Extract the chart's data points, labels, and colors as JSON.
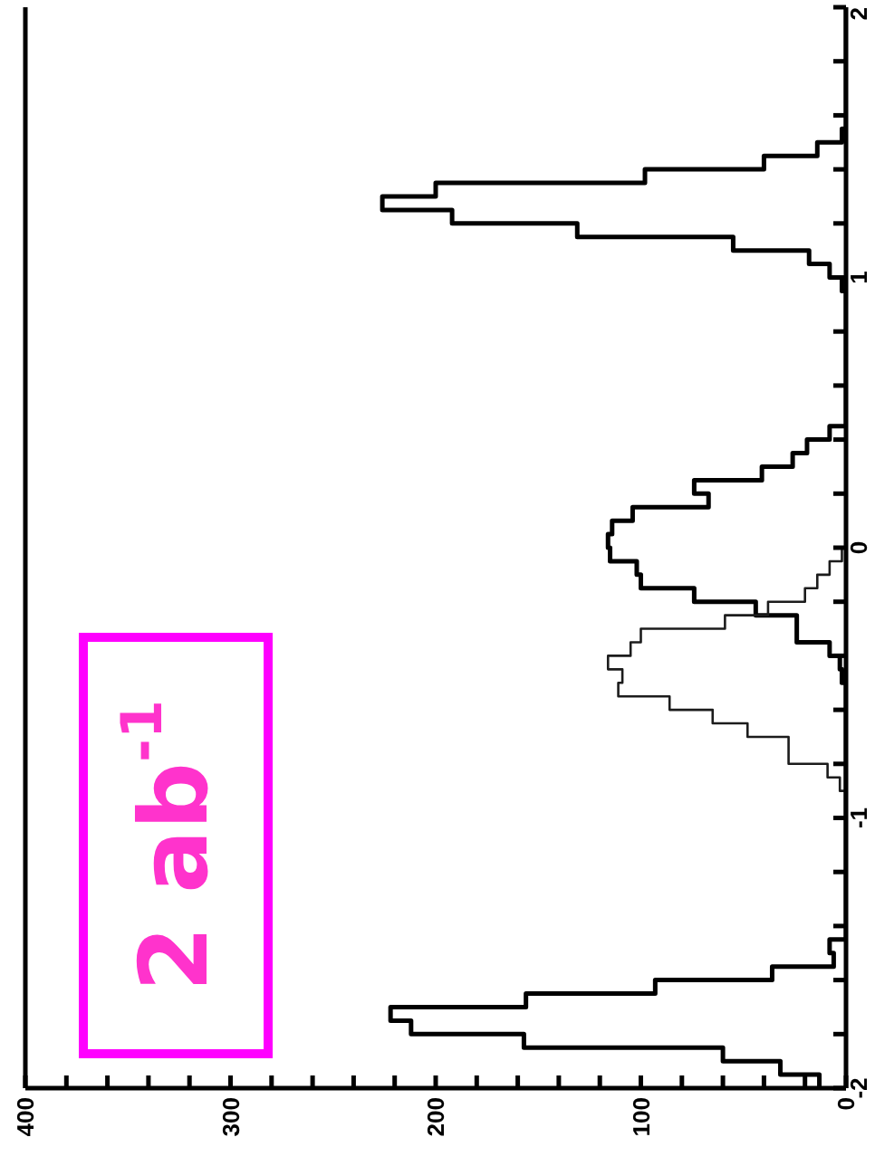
{
  "chart_data": {
    "type": "histogram",
    "orientation": "horizontal",
    "bins": [
      -2,
      -1.95,
      -1.9,
      -1.85,
      -1.8,
      -1.75,
      -1.7,
      -1.65,
      -1.6,
      -1.55,
      -1.5,
      -1.45,
      -1.4,
      -1.35,
      -1.3,
      -1.25,
      -1.2,
      -1.15,
      -1.1,
      -1.05,
      -1,
      -0.95,
      -0.9,
      -0.85,
      -0.8,
      -0.75,
      -0.7,
      -0.65,
      -0.6,
      -0.55,
      -0.5,
      -0.45,
      -0.4,
      -0.35,
      -0.3,
      -0.25,
      -0.2,
      -0.15,
      -0.1,
      -0.05,
      0,
      0.05,
      0.1,
      0.15,
      0.2,
      0.25,
      0.3,
      0.35,
      0.4,
      0.45,
      0.5,
      0.55,
      0.6,
      0.65,
      0.7,
      0.75,
      0.8,
      0.85,
      0.9,
      0.95,
      1,
      1.05,
      1.1,
      1.15,
      1.2,
      1.25,
      1.3,
      1.35,
      1.4,
      1.45,
      1.5,
      1.55,
      1.6,
      1.65,
      1.7,
      1.75,
      1.8,
      1.85,
      1.9,
      1.95,
      2
    ],
    "series": [
      {
        "color": "#000000",
        "values": [
          13,
          32,
          60,
          157,
          212,
          222,
          156,
          93,
          36,
          6,
          8,
          0,
          0,
          0,
          0,
          0,
          0,
          0,
          0,
          0,
          0,
          0,
          0,
          0,
          0,
          0,
          0,
          0,
          0,
          0,
          2,
          3,
          8,
          24,
          24,
          44,
          74,
          100,
          102,
          115,
          116,
          114,
          104,
          67,
          74,
          41,
          26,
          19,
          8,
          0,
          0,
          0,
          0,
          0,
          0,
          0,
          0,
          0,
          0,
          2,
          8,
          18,
          55,
          131,
          192,
          226,
          200,
          98,
          40,
          14,
          2,
          0,
          0,
          0,
          0,
          0,
          0,
          0,
          0,
          0
        ]
      },
      {
        "color": "#1c1c1c",
        "values": [
          0,
          0,
          0,
          0,
          0,
          0,
          0,
          0,
          0,
          0,
          0,
          0,
          0,
          0,
          0,
          0,
          0,
          0,
          0,
          0,
          0,
          0,
          3,
          9,
          28,
          28,
          48,
          65,
          86,
          111,
          109,
          116,
          105,
          100,
          59,
          38,
          20,
          14,
          8,
          2,
          0,
          0,
          0,
          0,
          0,
          0,
          0,
          0,
          0,
          0,
          0,
          0,
          0,
          0,
          0,
          0,
          0,
          0,
          0,
          0,
          0,
          0,
          0,
          0,
          0,
          0,
          0,
          0,
          0,
          0,
          0,
          0,
          0,
          0,
          0,
          0,
          0,
          0,
          0,
          0
        ]
      }
    ],
    "xlim": [
      400,
      0
    ],
    "xticks": [
      400,
      {
        "value": 380,
        "label": null
      },
      {
        "value": 360,
        "label": null
      },
      {
        "value": 340,
        "label": null
      },
      {
        "value": 320,
        "label": null
      },
      300,
      {
        "value": 280,
        "label": null
      },
      {
        "value": 260,
        "label": null
      },
      {
        "value": 240,
        "label": null
      },
      {
        "value": 220,
        "label": null
      },
      200,
      {
        "value": 180,
        "label": null
      },
      {
        "value": 160,
        "label": null
      },
      {
        "value": 140,
        "label": null
      },
      {
        "value": 120,
        "label": null
      },
      100,
      {
        "value": 80,
        "label": null
      },
      {
        "value": 60,
        "label": null
      },
      {
        "value": 40,
        "label": null
      },
      {
        "value": 20,
        "label": null
      },
      0
    ],
    "ylim": [
      -2,
      2
    ],
    "yticks": [
      -2,
      {
        "value": -1.8,
        "label": null
      },
      {
        "value": -1.6,
        "label": null
      },
      {
        "value": -1.4,
        "label": null
      },
      {
        "value": -1.2,
        "label": null
      },
      -1,
      {
        "value": -0.8,
        "label": null
      },
      {
        "value": -0.6,
        "label": null
      },
      {
        "value": -0.4,
        "label": null
      },
      {
        "value": -0.2,
        "label": null
      },
      0,
      {
        "value": 0.2,
        "label": null
      },
      {
        "value": 0.4,
        "label": null
      },
      {
        "value": 0.6,
        "label": null
      },
      {
        "value": 0.8,
        "label": null
      },
      1,
      {
        "value": 1.2,
        "label": null
      },
      {
        "value": 1.4,
        "label": null
      },
      {
        "value": 1.6,
        "label": null
      },
      {
        "value": 1.8,
        "label": null
      },
      2
    ],
    "annotations": [
      "2 ab$^{-1}$"
    ]
  }
}
